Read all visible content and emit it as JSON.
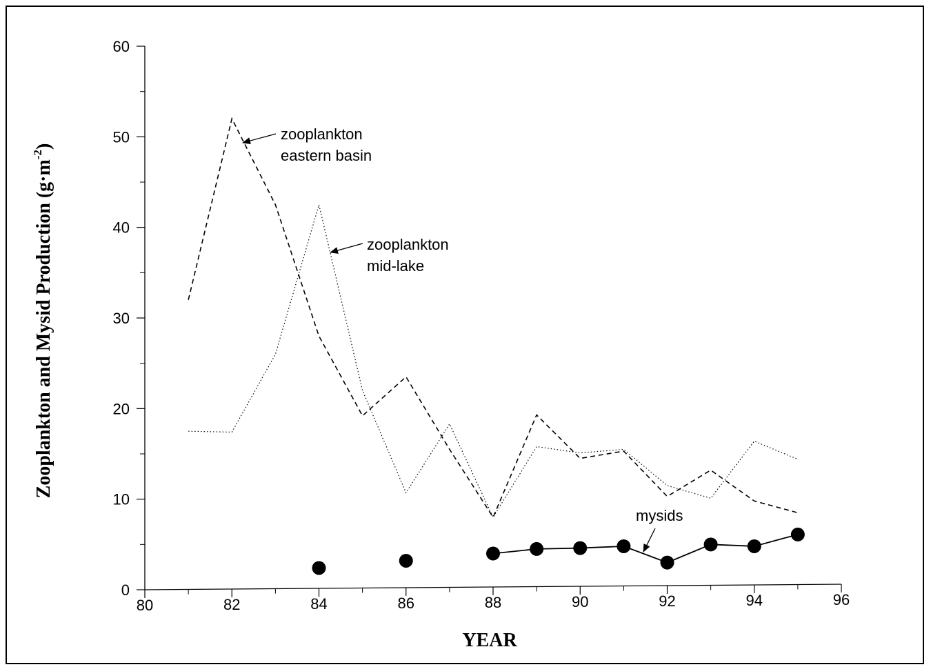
{
  "chart_data": {
    "type": "line",
    "title": "",
    "xlabel": "YEAR",
    "ylabel": "Zooplankton and Mysid Production (g·m⁻²)",
    "ylabel_main": "Zooplankton and Mysid Production (g·m",
    "ylabel_sup": "-2",
    "ylabel_end": ")",
    "xlim": [
      80,
      96
    ],
    "ylim": [
      0,
      60
    ],
    "xticks": [
      80,
      82,
      84,
      86,
      88,
      90,
      92,
      94,
      96
    ],
    "yticks": [
      0,
      10,
      20,
      30,
      40,
      50,
      60
    ],
    "grid": false,
    "series": [
      {
        "name": "zooplankton eastern basin",
        "style": "dashed",
        "color": "#000000",
        "x": [
          81,
          82,
          83,
          84,
          85,
          86,
          87,
          88,
          89,
          90,
          91,
          92,
          93,
          94,
          95
        ],
        "y": [
          32,
          52,
          42.5,
          28,
          19.2,
          23.5,
          15.5,
          8,
          19.3,
          14.5,
          15.3,
          10.3,
          13.2,
          9.8,
          8.5
        ]
      },
      {
        "name": "zooplankton mid-lake",
        "style": "dotted",
        "color": "#000000",
        "x": [
          81,
          82,
          83,
          84,
          85,
          86,
          87,
          88,
          89,
          90,
          91,
          92,
          93,
          94,
          95
        ],
        "y": [
          17.5,
          17.4,
          26,
          42.5,
          22,
          10.7,
          18.3,
          8,
          15.8,
          15.1,
          15.5,
          11.5,
          10.1,
          16.4,
          14.4
        ]
      },
      {
        "name": "mysids",
        "style": "solid-markers",
        "color": "#000000",
        "x": [
          84,
          86,
          88,
          89,
          90,
          91,
          92,
          93,
          94,
          95
        ],
        "y": [
          2.4,
          3.2,
          4.0,
          4.5,
          4.6,
          4.8,
          3.0,
          5.0,
          4.8,
          6.1
        ],
        "connected_from_x": 88
      }
    ],
    "annotations": [
      {
        "lines": [
          "zooplankton",
          "eastern basin"
        ],
        "points_to_series": "zooplankton eastern basin"
      },
      {
        "lines": [
          "zooplankton",
          "mid-lake"
        ],
        "points_to_series": "zooplankton mid-lake"
      },
      {
        "lines": [
          "mysids"
        ],
        "points_to_series": "mysids"
      }
    ]
  }
}
